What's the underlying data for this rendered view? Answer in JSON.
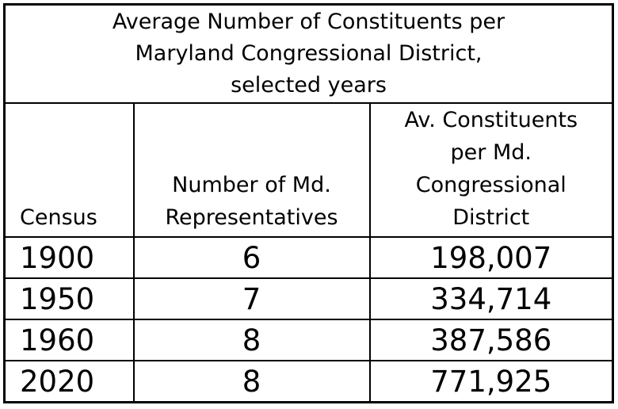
{
  "table": {
    "title": "Average Number of Constituents per\nMaryland Congressional District,\nselected years",
    "columns": [
      {
        "label": "Census"
      },
      {
        "label": "Number of Md.\nRepresentatives"
      },
      {
        "label": "Av. Constituents\nper Md.\nCongressional\nDistrict"
      }
    ],
    "rows": [
      {
        "census": "1900",
        "representatives": "6",
        "avg_constituents": "198,007"
      },
      {
        "census": "1950",
        "representatives": "7",
        "avg_constituents": "334,714"
      },
      {
        "census": "1960",
        "representatives": "8",
        "avg_constituents": "387,586"
      },
      {
        "census": "2020",
        "representatives": "8",
        "avg_constituents": "771,925"
      }
    ]
  },
  "chart_data": {
    "type": "table",
    "title": "Average Number of Constituents per Maryland Congressional District, selected years",
    "columns": [
      "Census",
      "Number of Md. Representatives",
      "Av. Constituents per Md. Congressional District"
    ],
    "rows": [
      [
        "1900",
        6,
        198007
      ],
      [
        "1950",
        7,
        334714
      ],
      [
        "1960",
        8,
        387586
      ],
      [
        "2020",
        8,
        771925
      ]
    ]
  },
  "colors": {
    "border": "#000000",
    "text": "#000000",
    "background": "#ffffff"
  }
}
